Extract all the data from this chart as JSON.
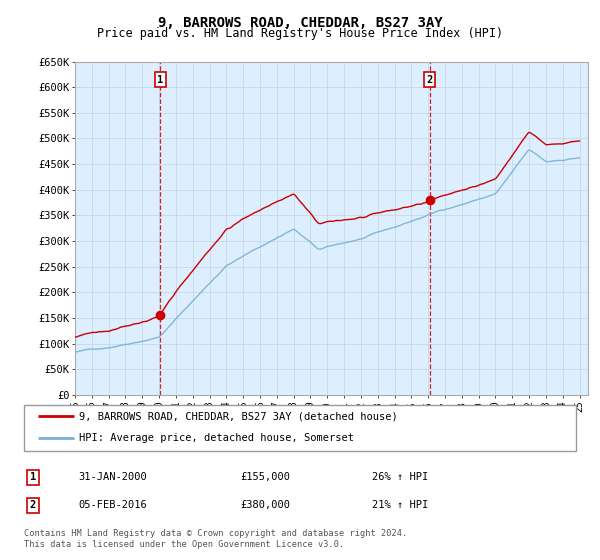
{
  "title": "9, BARROWS ROAD, CHEDDAR, BS27 3AY",
  "subtitle": "Price paid vs. HM Land Registry's House Price Index (HPI)",
  "ylabel_ticks": [
    "£0",
    "£50K",
    "£100K",
    "£150K",
    "£200K",
    "£250K",
    "£300K",
    "£350K",
    "£400K",
    "£450K",
    "£500K",
    "£550K",
    "£600K",
    "£650K"
  ],
  "ylim": [
    0,
    650000
  ],
  "yticks": [
    0,
    50000,
    100000,
    150000,
    200000,
    250000,
    300000,
    350000,
    400000,
    450000,
    500000,
    550000,
    600000,
    650000
  ],
  "xlim_start": 1995.0,
  "xlim_end": 2025.5,
  "plot_bg_color": "#ddeeff",
  "grid_color": "#c8d8e8",
  "sale1_x": 2000.083,
  "sale1_y": 155000,
  "sale2_x": 2016.083,
  "sale2_y": 380000,
  "legend_line1": "9, BARROWS ROAD, CHEDDAR, BS27 3AY (detached house)",
  "legend_line2": "HPI: Average price, detached house, Somerset",
  "annotation1_label": "1",
  "annotation1_date": "31-JAN-2000",
  "annotation1_price": "£155,000",
  "annotation1_hpi": "26% ↑ HPI",
  "annotation2_label": "2",
  "annotation2_date": "05-FEB-2016",
  "annotation2_price": "£380,000",
  "annotation2_hpi": "21% ↑ HPI",
  "footnote": "Contains HM Land Registry data © Crown copyright and database right 2024.\nThis data is licensed under the Open Government Licence v3.0.",
  "red_color": "#cc0000",
  "blue_color": "#7ab0d4",
  "box_color": "#cc0000"
}
